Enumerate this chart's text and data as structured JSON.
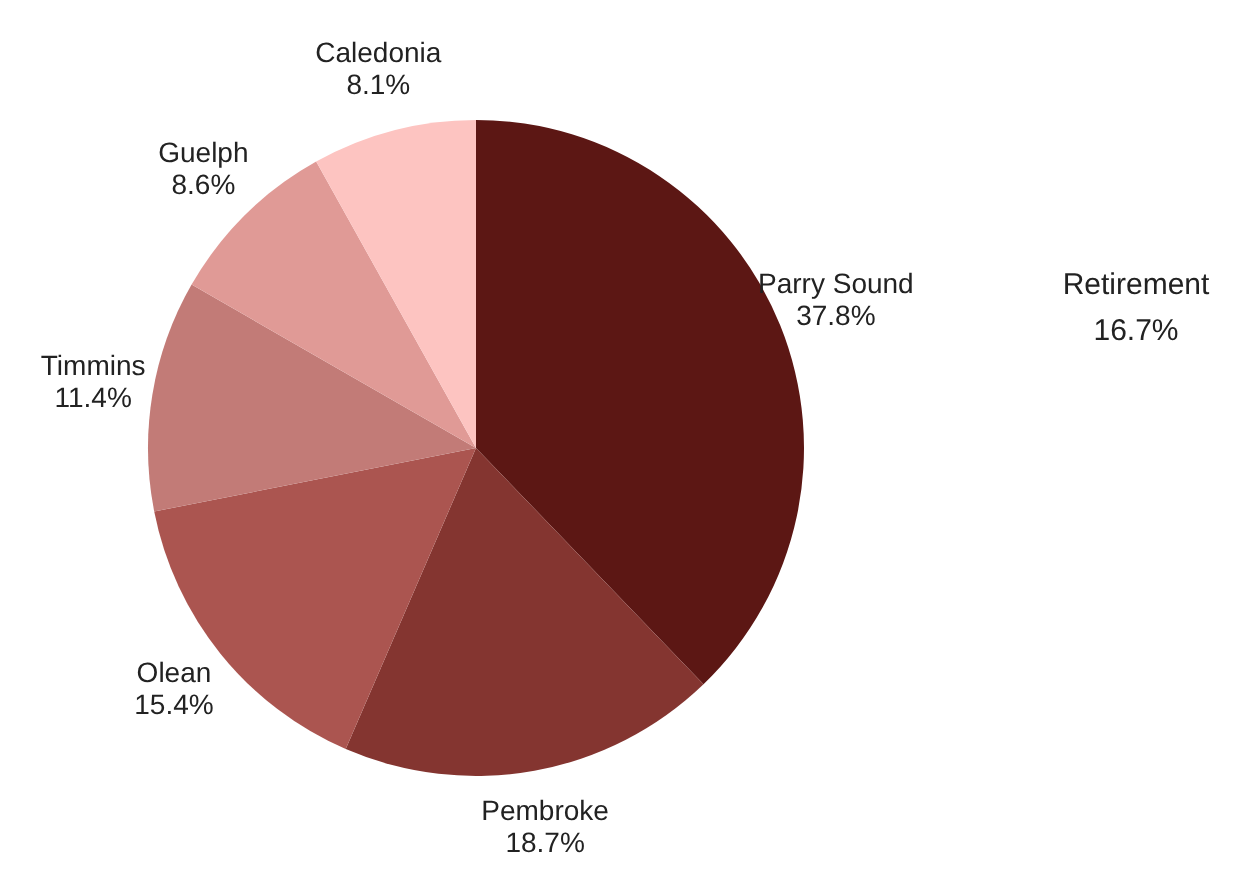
{
  "chart_data": {
    "type": "pie",
    "categories": [
      "Parry Sound",
      "Pembroke",
      "Olean",
      "Timmins",
      "Guelph",
      "Caledonia"
    ],
    "values": [
      37.8,
      18.7,
      15.4,
      11.4,
      8.6,
      8.1
    ],
    "value_labels": [
      "37.8%",
      "18.7%",
      "15.4%",
      "11.4%",
      "8.6%",
      "8.1%"
    ],
    "colors": [
      "#5c1714",
      "#843530",
      "#ab5550",
      "#c27b77",
      "#e09a96",
      "#fdc4c1"
    ],
    "annotations": [
      "Retirement",
      "16.7%"
    ]
  }
}
